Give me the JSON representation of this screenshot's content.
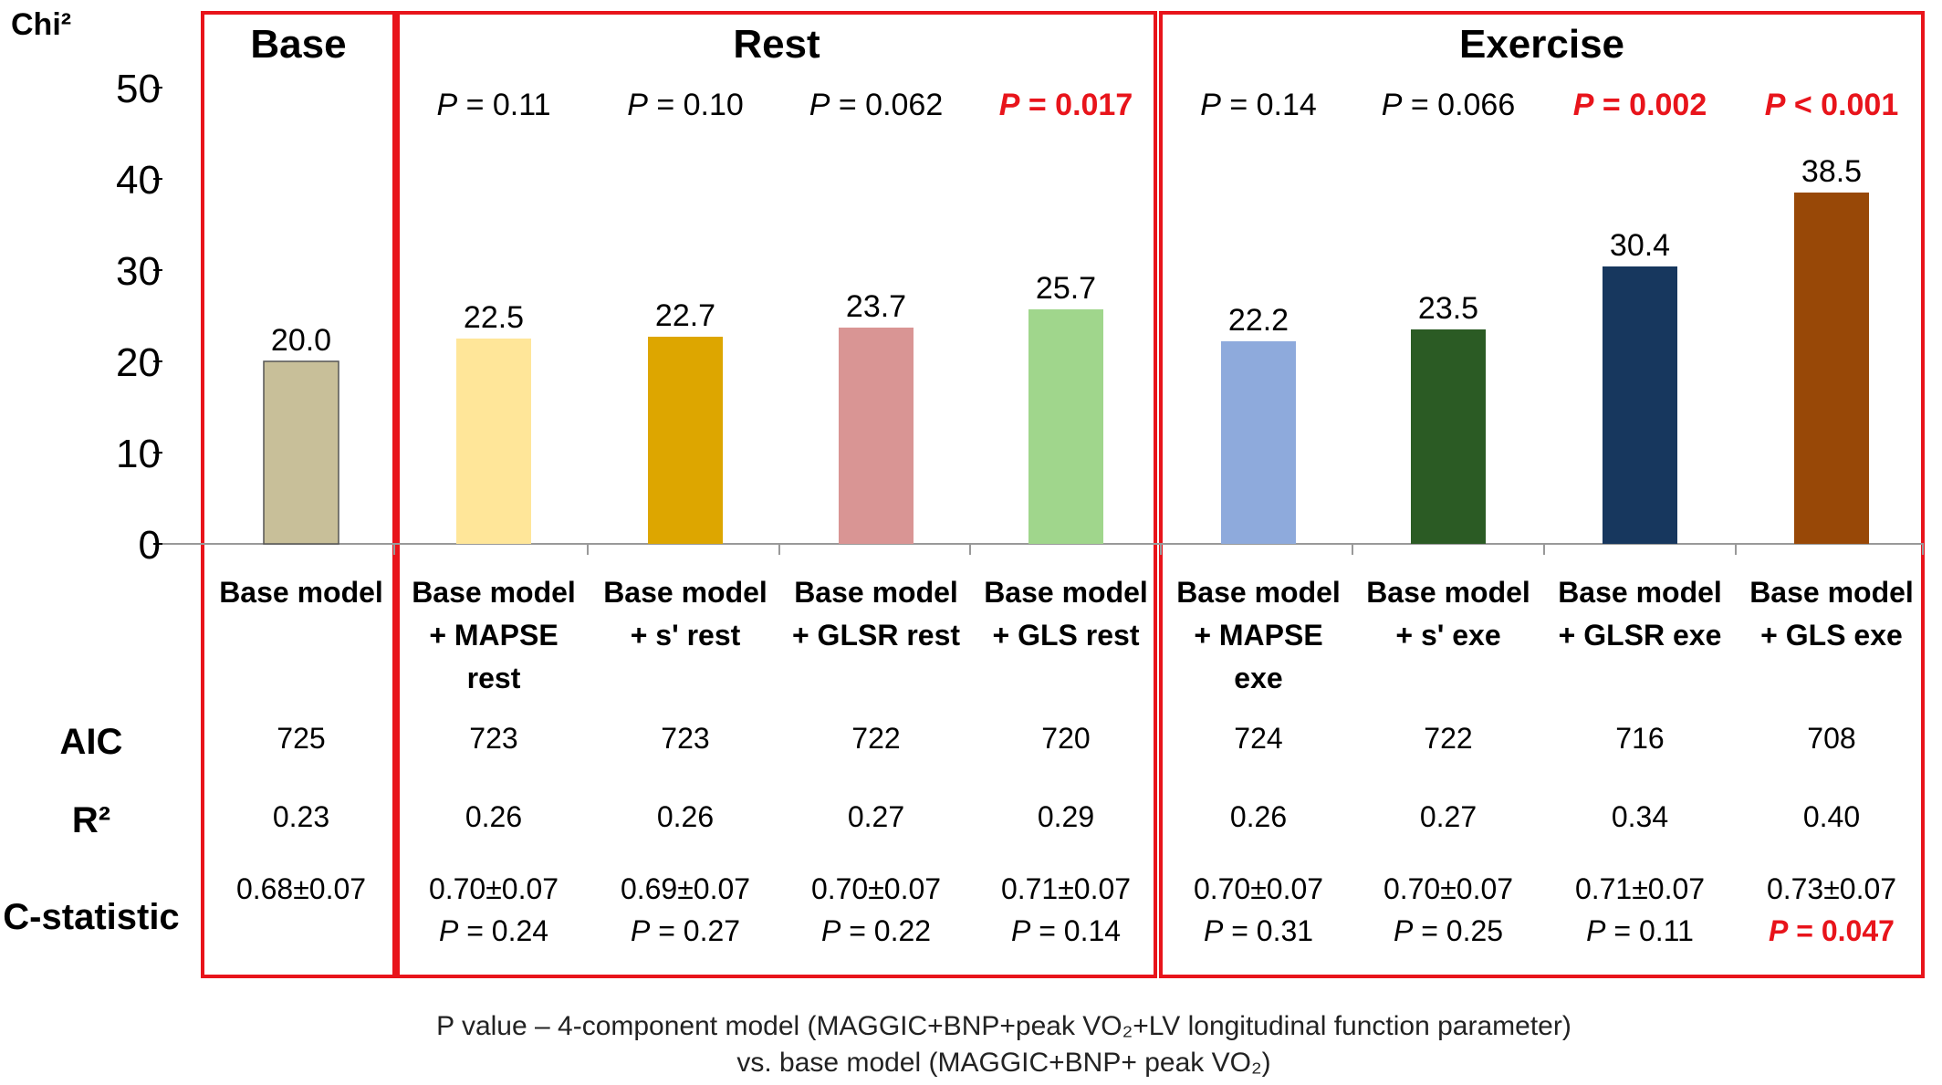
{
  "chart_data": {
    "type": "bar",
    "y_axis_title": "Chi²",
    "ylim": [
      0,
      50
    ],
    "y_ticks": [
      "0",
      "10",
      "20",
      "30",
      "40",
      "50"
    ],
    "groups": [
      {
        "label": "Base",
        "category_indices": [
          0
        ]
      },
      {
        "label": "Rest",
        "category_indices": [
          1,
          2,
          3,
          4
        ]
      },
      {
        "label": "Exercise",
        "category_indices": [
          5,
          6,
          7,
          8
        ]
      }
    ],
    "categories": [
      {
        "lines": [
          "Base model"
        ],
        "value": 20.0,
        "value_label": "20.0",
        "color": "#c8bf99",
        "p_label": ""
      },
      {
        "lines": [
          "Base model",
          "+ MAPSE",
          "rest"
        ],
        "value": 22.5,
        "value_label": "22.5",
        "color": "#ffe699",
        "p_label": "P = 0.11",
        "p_significant": false
      },
      {
        "lines": [
          "Base model",
          "+ s' rest"
        ],
        "value": 22.7,
        "value_label": "22.7",
        "color": "#dda600",
        "p_label": "P = 0.10",
        "p_significant": false
      },
      {
        "lines": [
          "Base model",
          "+ GLSR rest"
        ],
        "value": 23.7,
        "value_label": "23.7",
        "color": "#d99594",
        "p_label": "P = 0.062",
        "p_significant": false
      },
      {
        "lines": [
          "Base model",
          "+ GLS rest"
        ],
        "value": 25.7,
        "value_label": "25.7",
        "color": "#a0d68c",
        "p_label": "P = 0.017",
        "p_significant": true
      },
      {
        "lines": [
          "Base model",
          "+ MAPSE",
          "exe"
        ],
        "value": 22.2,
        "value_label": "22.2",
        "color": "#8eaadc",
        "p_label": "P = 0.14",
        "p_significant": false
      },
      {
        "lines": [
          "Base model",
          "+ s' exe"
        ],
        "value": 23.5,
        "value_label": "23.5",
        "color": "#2b5b24",
        "p_label": "P = 0.066",
        "p_significant": false
      },
      {
        "lines": [
          "Base model",
          "+ GLSR exe"
        ],
        "value": 30.4,
        "value_label": "30.4",
        "color": "#17375e",
        "p_label": "P = 0.002",
        "p_significant": true
      },
      {
        "lines": [
          "Base model",
          "+ GLS exe"
        ],
        "value": 38.5,
        "value_label": "38.5",
        "color": "#984807",
        "p_label": "P < 0.001",
        "p_significant": true
      }
    ],
    "table": {
      "rows": [
        {
          "label": "AIC",
          "cells": [
            [
              "725"
            ],
            [
              "723"
            ],
            [
              "723"
            ],
            [
              "722"
            ],
            [
              "720"
            ],
            [
              "724"
            ],
            [
              "722"
            ],
            [
              "716"
            ],
            [
              "708"
            ]
          ]
        },
        {
          "label": "R²",
          "cells": [
            [
              "0.23"
            ],
            [
              "0.26"
            ],
            [
              "0.26"
            ],
            [
              "0.27"
            ],
            [
              "0.29"
            ],
            [
              "0.26"
            ],
            [
              "0.27"
            ],
            [
              "0.34"
            ],
            [
              "0.40"
            ]
          ]
        },
        {
          "label": "C-statistic",
          "cells": [
            [
              "0.68±0.07"
            ],
            [
              "0.70±0.07",
              "P = 0.24"
            ],
            [
              "0.69±0.07",
              "P = 0.27"
            ],
            [
              "0.70±0.07",
              "P = 0.22"
            ],
            [
              "0.71±0.07",
              "P = 0.14"
            ],
            [
              "0.70±0.07",
              "P = 0.31"
            ],
            [
              "0.70±0.07",
              "P = 0.25"
            ],
            [
              "0.71±0.07",
              "P = 0.11"
            ],
            [
              "0.73±0.07",
              "P = 0.047"
            ]
          ],
          "significant_second_line": [
            false,
            false,
            false,
            false,
            false,
            false,
            false,
            false,
            true
          ]
        }
      ]
    },
    "footnote": [
      "P value – 4-component model (MAGGIC+BNP+peak VO₂+LV longitudinal function parameter)",
      "vs. base model (MAGGIC+BNP+ peak VO₂)"
    ],
    "colors": {
      "box": "#e8141b",
      "significant": "#e8141b",
      "axis": "#999999"
    }
  }
}
